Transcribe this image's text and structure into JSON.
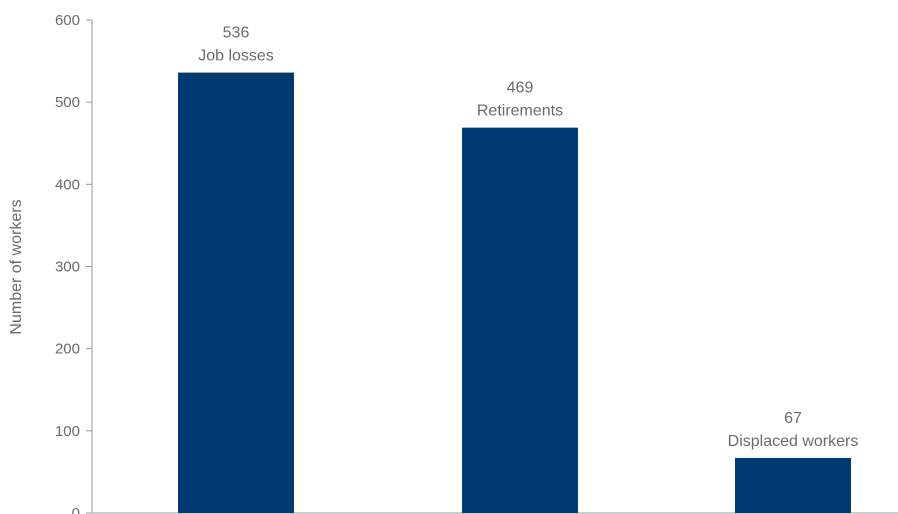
{
  "chart_data": {
    "type": "bar",
    "categories": [
      "Job losses",
      "Retirements",
      "Displaced workers"
    ],
    "values": [
      536,
      469,
      67
    ],
    "data_labels": [
      {
        "value": "536",
        "category": "Job losses"
      },
      {
        "value": "469",
        "category": "Retirements"
      },
      {
        "value": "67",
        "category": "Displaced workers"
      }
    ],
    "title": "",
    "xlabel": "",
    "ylabel": "Number of workers",
    "ylim": [
      0,
      600
    ],
    "yticks": [
      "0",
      "100",
      "200",
      "300",
      "400",
      "500",
      "600"
    ],
    "grid": false,
    "legend": "none",
    "bar_color": "#003a70"
  }
}
